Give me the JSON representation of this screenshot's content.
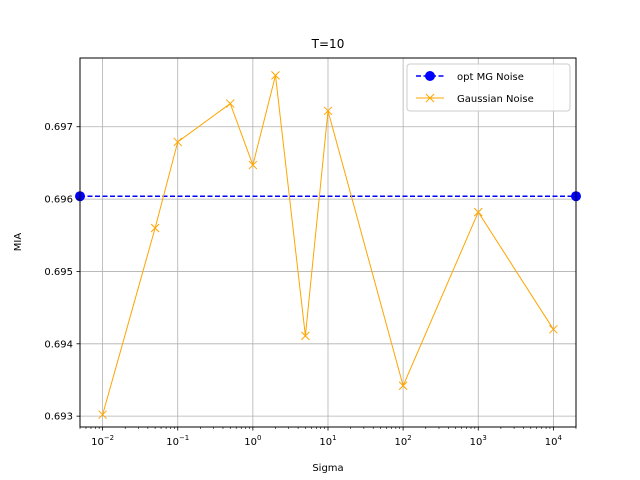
{
  "chart_data": {
    "type": "line",
    "title": "T=10",
    "xlabel": "Sigma",
    "ylabel": "MIA",
    "xscale": "log",
    "xlim": [
      0.005,
      20000
    ],
    "ylim": [
      0.69285,
      0.69795
    ],
    "grid": true,
    "legend_position": "top-right",
    "x_ticks": [
      0.01,
      0.1,
      1,
      10,
      100,
      1000,
      10000
    ],
    "x_tick_labels": [
      {
        "base": "10",
        "exp": "−2"
      },
      {
        "base": "10",
        "exp": "−1"
      },
      {
        "base": "10",
        "exp": "0"
      },
      {
        "base": "10",
        "exp": "1"
      },
      {
        "base": "10",
        "exp": "2"
      },
      {
        "base": "10",
        "exp": "3"
      },
      {
        "base": "10",
        "exp": "4"
      }
    ],
    "y_ticks": [
      0.693,
      0.694,
      0.695,
      0.696,
      0.697
    ],
    "y_tick_labels": [
      "0.693",
      "0.694",
      "0.695",
      "0.696",
      "0.697"
    ],
    "series": [
      {
        "name": "opt MG Noise",
        "color": "#0000ff",
        "style": "dashed",
        "marker": "circle",
        "x": [
          0.005,
          20000
        ],
        "y": [
          0.69604,
          0.69604
        ]
      },
      {
        "name": "Gaussian Noise",
        "color": "#ffa500",
        "style": "solid",
        "marker": "x",
        "x": [
          0.01,
          0.05,
          0.1,
          0.5,
          1,
          2,
          5,
          10,
          100,
          1000,
          10000
        ],
        "y": [
          0.69302,
          0.6956,
          0.69679,
          0.69732,
          0.69647,
          0.69771,
          0.69411,
          0.69722,
          0.69342,
          0.69582,
          0.6942
        ]
      }
    ]
  }
}
